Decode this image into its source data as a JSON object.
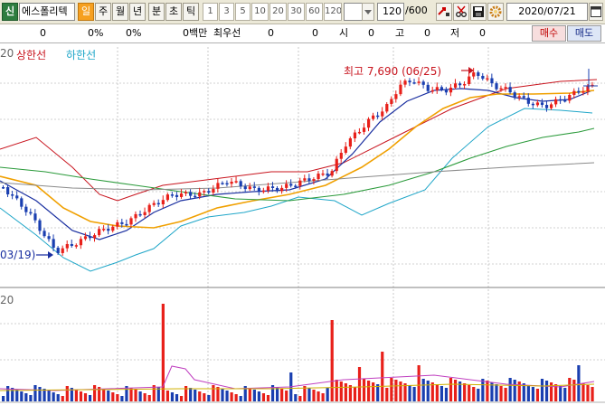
{
  "toolbar": {
    "stock_button": "신",
    "stock_name": "에스폴리텍",
    "periods": [
      "일",
      "주",
      "월",
      "년",
      "분",
      "초",
      "틱"
    ],
    "selected_period": "일",
    "intervals": [
      "1",
      "3",
      "5",
      "10",
      "20",
      "30",
      "60",
      "120"
    ],
    "count_value": "120",
    "count_total": "/600",
    "date": "2020/07/21"
  },
  "infobar": {
    "value1": "0",
    "value2": "0%",
    "value3": "0%",
    "value4": "0백만",
    "best_quote_label": "최우선",
    "best_quote_value1": "0",
    "best_quote_value2": "0",
    "open_label": "시",
    "open_value": "0",
    "high_label": "고",
    "high_value": "0",
    "low_label": "저",
    "low_value": "0",
    "buy_label": "매수",
    "sell_label": "매도"
  },
  "price_chart": {
    "legend_cut": "20",
    "upper_limit_label": "상한선",
    "lower_limit_label": "하한선",
    "high_marker": "최고 7,690 (06/25)",
    "low_marker": "03/19)",
    "volume_cut": "20",
    "colors": {
      "up": "#e8201a",
      "down": "#1a3fb0",
      "upper_band": "#c8141e",
      "lower_band": "#1fa6c8",
      "ma_short": "#1a2fa0",
      "ma_mid": "#f0a000",
      "ma_long": "#2a9a3a",
      "ma_longer": "#8a8a8a"
    }
  }
}
